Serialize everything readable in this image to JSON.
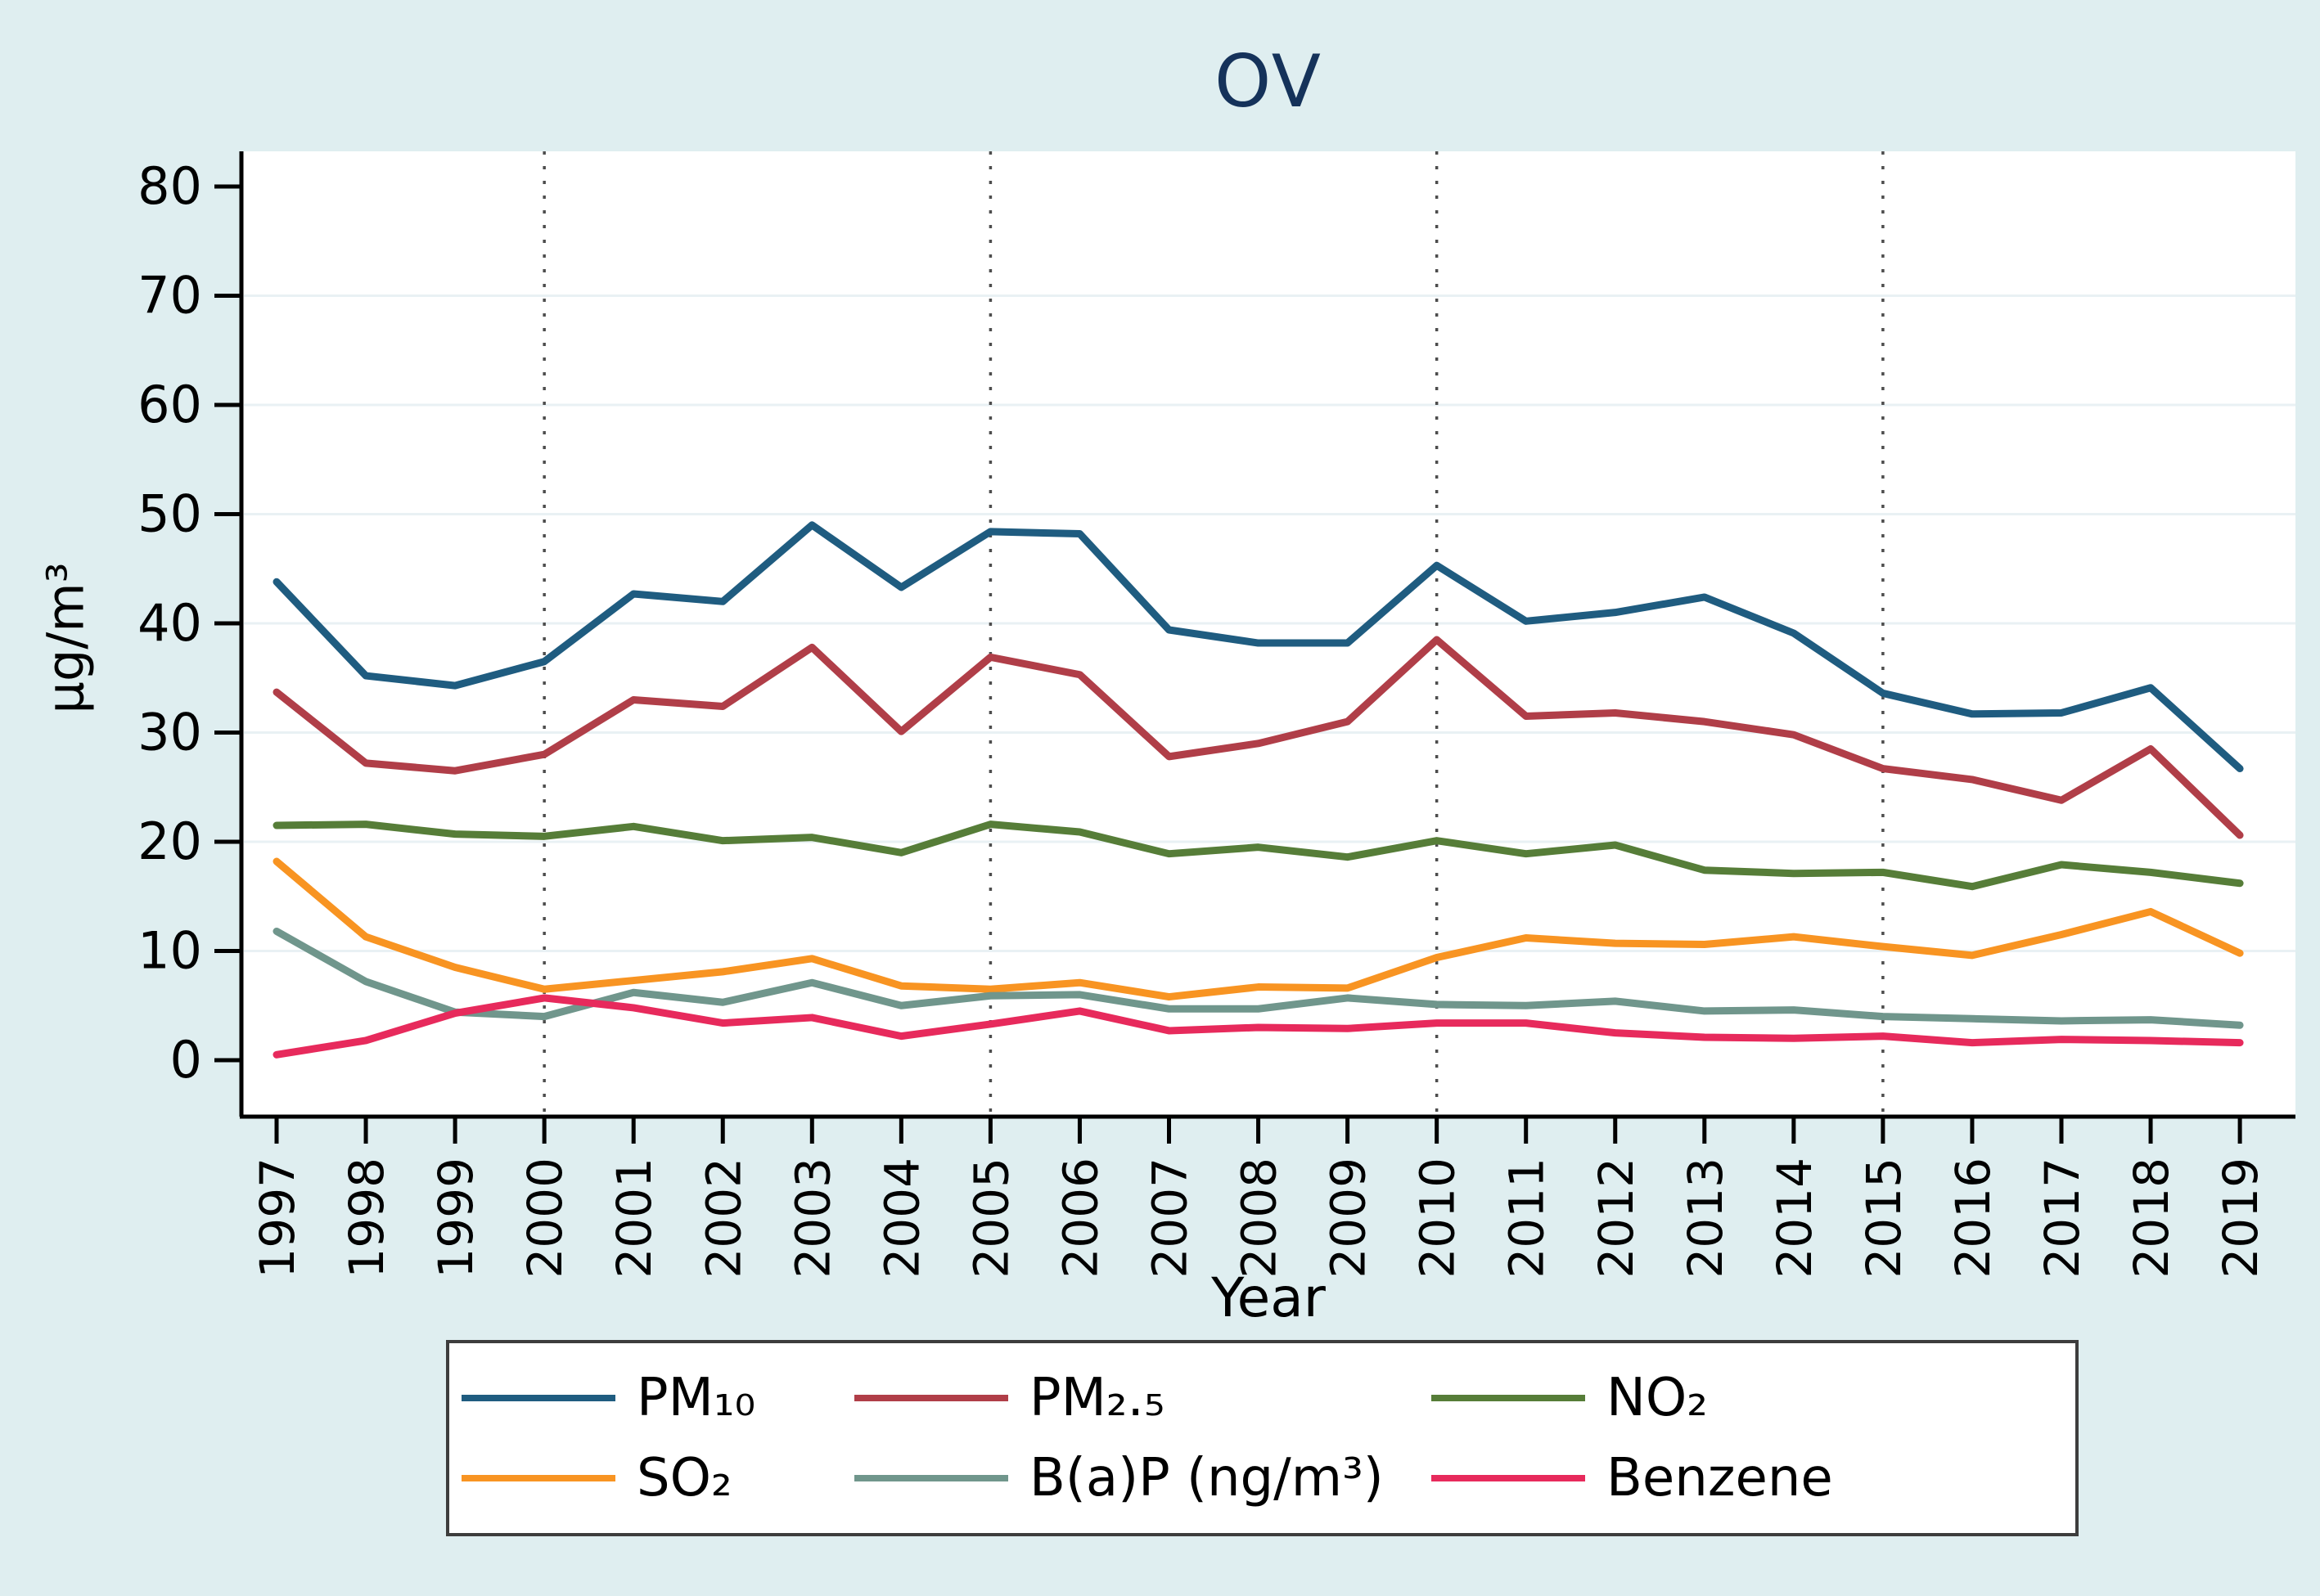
{
  "title": "OV",
  "colors": {
    "background": "#dfeef0",
    "plot_background": "#ffffff",
    "gridline": "#e9f1f4",
    "dotted_gridline": "#4d4d4d",
    "axis": "#000000",
    "title_text": "#15325a",
    "tick_text": "#000000"
  },
  "chart_data": {
    "type": "line",
    "title": "OV",
    "xlabel": "Year",
    "ylabel": "µg/m³",
    "ylim": [
      0,
      80
    ],
    "yticks": [
      0,
      10,
      20,
      30,
      40,
      50,
      60,
      70,
      80
    ],
    "ygrid_values": [
      10,
      20,
      30,
      40,
      50,
      60,
      70
    ],
    "xgrid_dotted_at": [
      2000,
      2005,
      2010,
      2015
    ],
    "grid": "horizontal-light, dotted-vertical-at-5yr",
    "legend_position": "bottom-center-box",
    "x": [
      1997,
      1998,
      1999,
      2000,
      2001,
      2002,
      2003,
      2004,
      2005,
      2006,
      2007,
      2008,
      2009,
      2010,
      2011,
      2012,
      2013,
      2014,
      2015,
      2016,
      2017,
      2018,
      2019
    ],
    "series": [
      {
        "name": "PM₁₀",
        "color": "#1f5c80",
        "values": [
          43.8,
          35.2,
          34.3,
          36.5,
          42.7,
          42.0,
          49.0,
          43.3,
          48.4,
          48.2,
          39.4,
          38.2,
          38.2,
          45.3,
          40.2,
          41.0,
          42.4,
          39.1,
          33.6,
          31.7,
          31.8,
          34.1,
          26.7
        ]
      },
      {
        "name": "PM₂.₅",
        "color": "#b03e48",
        "values": [
          33.7,
          27.2,
          26.5,
          28.0,
          33.0,
          32.4,
          37.8,
          30.1,
          36.9,
          35.3,
          27.8,
          29.0,
          31.0,
          38.5,
          31.5,
          31.8,
          31.0,
          29.8,
          26.7,
          25.7,
          23.8,
          28.5,
          20.6
        ]
      },
      {
        "name": "NO₂",
        "color": "#567d38",
        "values": [
          21.5,
          21.6,
          20.7,
          20.5,
          21.4,
          20.1,
          20.4,
          19.0,
          21.6,
          20.9,
          18.9,
          19.5,
          18.6,
          20.1,
          18.9,
          19.7,
          17.4,
          17.1,
          17.2,
          15.9,
          17.9,
          17.2,
          16.2
        ]
      },
      {
        "name": "SO₂",
        "color": "#f89422",
        "values": [
          18.2,
          11.3,
          8.5,
          6.5,
          7.3,
          8.1,
          9.3,
          6.8,
          6.5,
          7.1,
          5.8,
          6.7,
          6.6,
          9.4,
          11.2,
          10.7,
          10.6,
          11.3,
          10.4,
          9.6,
          11.5,
          13.6,
          9.8
        ]
      },
      {
        "name": "B(a)P (ng/m³)",
        "color": "#70968c",
        "values": [
          11.8,
          7.2,
          4.4,
          4.0,
          6.2,
          5.3,
          7.1,
          5.0,
          5.9,
          6.0,
          4.7,
          4.7,
          5.7,
          5.1,
          5.0,
          5.4,
          4.5,
          4.6,
          4.0,
          3.8,
          3.6,
          3.7,
          3.2
        ]
      },
      {
        "name": "Benzene",
        "color": "#e72a5c",
        "values": [
          0.5,
          1.8,
          4.3,
          5.7,
          4.8,
          3.4,
          3.9,
          2.2,
          3.3,
          4.5,
          2.7,
          3.0,
          2.9,
          3.4,
          3.4,
          2.5,
          2.1,
          2.0,
          2.2,
          1.6,
          1.9,
          1.8,
          1.6
        ]
      }
    ]
  },
  "legend": {
    "row1": [
      "PM₁₀",
      "PM₂.₅",
      "NO₂"
    ],
    "row2": [
      "SO₂",
      "B(a)P (ng/m³)",
      "Benzene"
    ]
  }
}
